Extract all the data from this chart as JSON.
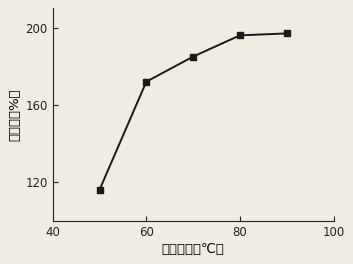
{
  "x": [
    50,
    60,
    70,
    80,
    90
  ],
  "y": [
    116,
    172,
    185,
    196,
    197
  ],
  "xlabel": "膨化温度（℃）",
  "ylabel": "膨化率（%）",
  "xlim": [
    40,
    100
  ],
  "ylim": [
    100,
    210
  ],
  "xticks": [
    40,
    60,
    80,
    100
  ],
  "yticks": [
    120,
    160,
    200
  ],
  "line_color": "#1a1a1a",
  "marker": "s",
  "markersize": 4.5,
  "linewidth": 1.4,
  "bg_color": "#f0ece4",
  "tick_fontsize": 8.5,
  "label_fontsize": 9.5
}
